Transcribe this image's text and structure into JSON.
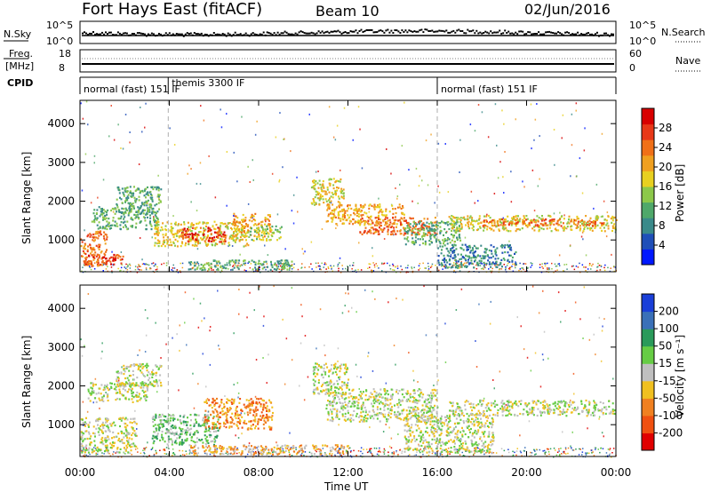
{
  "header": {
    "title": "Fort Hays East (fitACF)",
    "beam": "Beam 10",
    "date": "02/Jun/2016"
  },
  "top_panels": {
    "nsky": {
      "label": "N.Sky",
      "ticks": [
        "10^5",
        "10^0"
      ]
    },
    "nsearch": {
      "label": "N.Search",
      "ticks": [
        "10^5",
        "10^0"
      ]
    },
    "freq": {
      "label_line1": "Freq.",
      "label_line2": "[MHz]",
      "ticks": [
        "18",
        "8"
      ]
    },
    "nave": {
      "label": "Nave",
      "ticks": [
        "60",
        "0"
      ]
    },
    "cpid": {
      "label": "CPID"
    }
  },
  "cpid_segments": [
    {
      "label": "normal (fast) 151 IF",
      "start_hour": 0,
      "end_hour": 3.95
    },
    {
      "label": "themis 3300 IF",
      "start_hour": 3.95,
      "end_hour": 16
    },
    {
      "label": "normal (fast) 151 IF",
      "start_hour": 16,
      "end_hour": 24
    }
  ],
  "x_axis": {
    "label": "Time UT",
    "ticks": [
      "00:00",
      "04:00",
      "08:00",
      "12:00",
      "16:00",
      "20:00",
      "00:00"
    ],
    "range_hours": [
      0,
      24
    ]
  },
  "y_axis": {
    "label": "Slant Range [km]",
    "ticks": [
      "1000",
      "2000",
      "3000",
      "4000"
    ],
    "range_km": [
      180,
      4600
    ]
  },
  "power_scale": {
    "label": "Power [dB]",
    "ticks": [
      "4",
      "8",
      "12",
      "16",
      "20",
      "24",
      "28"
    ],
    "colors": [
      "#0018ff",
      "#1f4fb8",
      "#3a8a8a",
      "#4fa86a",
      "#8cc84a",
      "#e8d020",
      "#f0a020",
      "#f07018",
      "#e83818",
      "#d80000"
    ]
  },
  "velocity_scale": {
    "label": "Velocity [m s⁻¹]",
    "ticks": [
      "200",
      "100",
      "50",
      "15",
      "-15",
      "-50",
      "-100",
      "-200"
    ],
    "colors": [
      "#1a3fd8",
      "#3a70b8",
      "#2a9a5a",
      "#66cc44",
      "#bfbfbf",
      "#f0c020",
      "#f08020",
      "#f05010",
      "#e00000"
    ]
  },
  "chart_data": {
    "type": "heatmap",
    "title": "Fort Hays East (fitACF)",
    "xlabel": "Time UT",
    "ylabel": "Slant Range [km]",
    "xlim": [
      0,
      24
    ],
    "ylim": [
      180,
      4600
    ],
    "power_features": [
      {
        "t0": 0.0,
        "t1": 1.2,
        "r0": 350,
        "r1": 1250,
        "level": 7
      },
      {
        "t0": 0.2,
        "t1": 1.9,
        "r0": 380,
        "r1": 650,
        "level": 8
      },
      {
        "t0": 0.5,
        "t1": 3.5,
        "r0": 1300,
        "r1": 1900,
        "level": 3
      },
      {
        "t0": 1.6,
        "t1": 3.6,
        "r0": 1700,
        "r1": 2400,
        "level": 3
      },
      {
        "t0": 3.3,
        "t1": 7.5,
        "r0": 850,
        "r1": 1500,
        "level": 5
      },
      {
        "t0": 4.5,
        "t1": 6.5,
        "r0": 950,
        "r1": 1350,
        "level": 8
      },
      {
        "t0": 6.8,
        "t1": 8.5,
        "r0": 1100,
        "r1": 1700,
        "level": 6
      },
      {
        "t0": 7.5,
        "t1": 9.0,
        "r0": 1000,
        "r1": 1400,
        "level": 4
      },
      {
        "t0": 4.8,
        "t1": 9.5,
        "r0": 250,
        "r1": 500,
        "level": 3
      },
      {
        "t0": 10.3,
        "t1": 11.8,
        "r0": 1900,
        "r1": 2600,
        "level": 5
      },
      {
        "t0": 11.0,
        "t1": 14.5,
        "r0": 1400,
        "r1": 1950,
        "level": 6
      },
      {
        "t0": 12.5,
        "t1": 16.0,
        "r0": 1150,
        "r1": 1600,
        "level": 7
      },
      {
        "t0": 14.5,
        "t1": 17.0,
        "r0": 900,
        "r1": 1500,
        "level": 3
      },
      {
        "t0": 16.5,
        "t1": 24.0,
        "r0": 1250,
        "r1": 1650,
        "level": 5
      },
      {
        "t0": 18.0,
        "t1": 23.5,
        "r0": 1380,
        "r1": 1560,
        "level": 7
      },
      {
        "t0": 16.0,
        "t1": 19.5,
        "r0": 300,
        "r1": 900,
        "level": 2
      }
    ],
    "velocity_features": [
      {
        "t0": 0.0,
        "t1": 2.5,
        "r0": 300,
        "r1": 1200,
        "level": 4
      },
      {
        "t0": 0.3,
        "t1": 3.0,
        "r0": 1600,
        "r1": 2100,
        "level": 4
      },
      {
        "t0": 1.6,
        "t1": 3.6,
        "r0": 2000,
        "r1": 2600,
        "level": 4
      },
      {
        "t0": 3.2,
        "t1": 6.2,
        "r0": 500,
        "r1": 1300,
        "level": 3
      },
      {
        "t0": 5.5,
        "t1": 8.6,
        "r0": 900,
        "r1": 1700,
        "level": 6
      },
      {
        "t0": 4.8,
        "t1": 12.0,
        "r0": 250,
        "r1": 500,
        "level": 5
      },
      {
        "t0": 10.4,
        "t1": 12.0,
        "r0": 1800,
        "r1": 2600,
        "level": 4
      },
      {
        "t0": 11.0,
        "t1": 16.0,
        "r0": 1100,
        "r1": 1950,
        "level": 4
      },
      {
        "t0": 14.5,
        "t1": 18.5,
        "r0": 300,
        "r1": 1300,
        "level": 4
      },
      {
        "t0": 16.5,
        "t1": 24.0,
        "r0": 1250,
        "r1": 1650,
        "level": 4
      }
    ]
  }
}
